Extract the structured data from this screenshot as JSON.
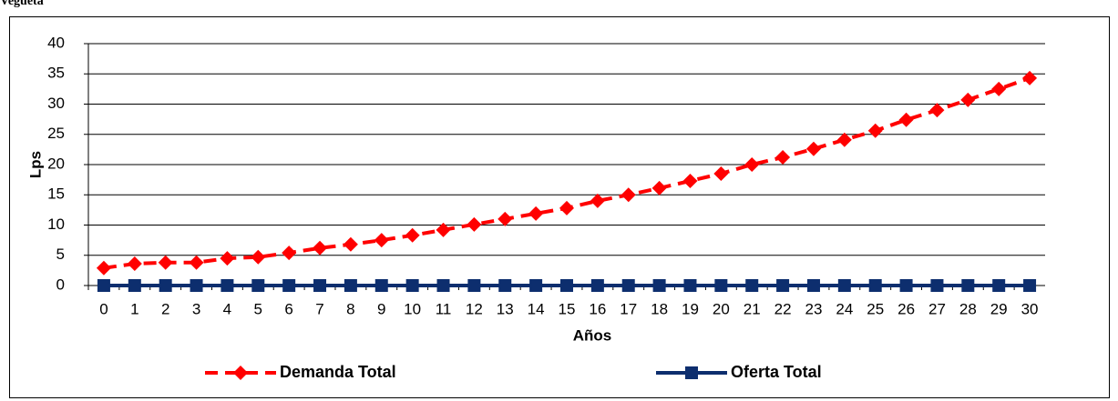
{
  "chart_data": {
    "type": "line",
    "title": "Vegueta",
    "xlabel": "Años",
    "ylabel": "Lps",
    "categories": [
      "0",
      "1",
      "2",
      "3",
      "4",
      "5",
      "6",
      "7",
      "8",
      "9",
      "10",
      "11",
      "12",
      "13",
      "14",
      "15",
      "16",
      "17",
      "18",
      "19",
      "20",
      "21",
      "22",
      "23",
      "24",
      "25",
      "26",
      "27",
      "28",
      "29",
      "30"
    ],
    "series": [
      {
        "name": "Demanda Total",
        "color": "#ff0000",
        "dash": true,
        "marker": "diamond",
        "values": [
          2.9,
          3.6,
          3.8,
          3.8,
          4.5,
          4.7,
          5.4,
          6.2,
          6.8,
          7.5,
          8.3,
          9.2,
          10.1,
          11.0,
          11.9,
          12.8,
          14.0,
          15.0,
          16.1,
          17.3,
          18.5,
          20.0,
          21.2,
          22.6,
          24.1,
          25.6,
          27.4,
          29.0,
          30.7,
          32.5,
          34.3
        ]
      },
      {
        "name": "Oferta Total",
        "color": "#0d2e6e",
        "dash": false,
        "marker": "square",
        "values": [
          0,
          0,
          0,
          0,
          0,
          0,
          0,
          0,
          0,
          0,
          0,
          0,
          0,
          0,
          0,
          0,
          0,
          0,
          0,
          0,
          0,
          0,
          0,
          0,
          0,
          0,
          0,
          0,
          0,
          0,
          0
        ]
      }
    ],
    "ylim": [
      0,
      40
    ],
    "yticks": [
      0,
      5,
      10,
      15,
      20,
      25,
      30,
      35,
      40
    ],
    "grid": true,
    "legend": "bottom"
  }
}
